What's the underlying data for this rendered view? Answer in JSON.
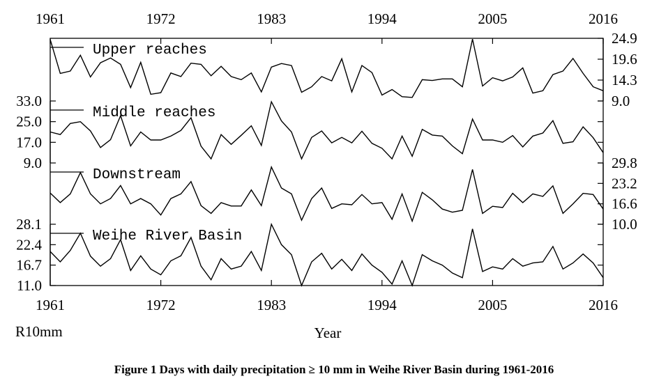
{
  "chart_data": {
    "type": "line",
    "title": "",
    "caption": "Figure 1  Days with daily precipitation ≥ 10 mm in Weihe River Basin during 1961-2016",
    "xlabel": "Year",
    "ylabel": "R10mm",
    "xlim": [
      1961,
      2016
    ],
    "x_ticks": [
      "1961",
      "1972",
      "1983",
      "1994",
      "2005",
      "2016"
    ],
    "x": [
      1961,
      1962,
      1963,
      1964,
      1965,
      1966,
      1967,
      1968,
      1969,
      1970,
      1971,
      1972,
      1973,
      1974,
      1975,
      1976,
      1977,
      1978,
      1979,
      1980,
      1981,
      1982,
      1983,
      1984,
      1985,
      1986,
      1987,
      1988,
      1989,
      1990,
      1991,
      1992,
      1993,
      1994,
      1995,
      1996,
      1997,
      1998,
      1999,
      2000,
      2001,
      2002,
      2003,
      2004,
      2005,
      2006,
      2007,
      2008,
      2009,
      2010,
      2011,
      2012,
      2013,
      2014,
      2015,
      2016
    ],
    "series": [
      {
        "name": "Upper reaches",
        "axis_side": "right",
        "ylim": [
          9.0,
          24.9
        ],
        "y_ticks": [
          "24.9",
          "19.6",
          "14.3",
          "9.0"
        ],
        "values": [
          24.6,
          16.0,
          16.6,
          20.6,
          15.1,
          18.7,
          19.9,
          18.3,
          12.4,
          18.8,
          10.7,
          11.1,
          16.1,
          15.2,
          18.6,
          18.3,
          15.4,
          17.8,
          15.2,
          14.4,
          16.1,
          11.3,
          17.6,
          18.5,
          18.0,
          11.2,
          12.6,
          15.2,
          14.1,
          19.7,
          11.3,
          18.0,
          16.2,
          10.5,
          11.9,
          10.1,
          9.9,
          14.4,
          14.2,
          14.6,
          14.6,
          12.6,
          24.7,
          12.8,
          14.9,
          14.1,
          15.1,
          17.4,
          11.0,
          11.6,
          15.7,
          16.6,
          19.8,
          16.0,
          12.6,
          11.6
        ]
      },
      {
        "name": "Middle reaches",
        "axis_side": "left",
        "ylim": [
          9.0,
          33.0
        ],
        "y_ticks": [
          "33.0",
          "25.0",
          "17.0",
          "9.0"
        ],
        "values": [
          21.0,
          20.0,
          24.3,
          25.0,
          21.4,
          15.0,
          18.0,
          27.3,
          15.6,
          21.0,
          17.9,
          17.9,
          19.4,
          21.6,
          26.5,
          15.5,
          10.6,
          20.0,
          16.2,
          19.7,
          23.4,
          15.8,
          32.7,
          25.3,
          21.0,
          10.6,
          18.9,
          21.4,
          16.8,
          18.9,
          16.8,
          21.3,
          16.6,
          14.7,
          10.6,
          19.4,
          11.6,
          22.0,
          19.8,
          19.4,
          15.6,
          12.6,
          26.0,
          17.9,
          17.9,
          17.0,
          19.6,
          15.2,
          19.4,
          20.6,
          25.4,
          16.6,
          17.2,
          23.0,
          18.8,
          13.0
        ]
      },
      {
        "name": "Downstream",
        "axis_side": "right",
        "ylim": [
          10.0,
          29.8
        ],
        "y_ticks": [
          "29.8",
          "23.2",
          "16.6",
          "10.0"
        ],
        "values": [
          20.1,
          17.0,
          19.8,
          26.7,
          19.8,
          16.6,
          18.3,
          22.5,
          16.6,
          18.3,
          16.6,
          13.0,
          18.3,
          19.8,
          23.8,
          16.0,
          13.5,
          17.0,
          15.9,
          15.9,
          21.1,
          16.0,
          28.5,
          21.7,
          19.8,
          11.3,
          18.3,
          21.7,
          15.1,
          16.6,
          16.3,
          19.6,
          16.6,
          17.0,
          11.6,
          19.8,
          11.0,
          20.3,
          17.9,
          14.9,
          13.9,
          14.5,
          27.7,
          13.5,
          15.8,
          15.4,
          20.0,
          17.0,
          19.8,
          19.0,
          22.4,
          13.5,
          16.6,
          20.0,
          19.6,
          14.9
        ]
      },
      {
        "name": "Weihe River Basin",
        "axis_side": "left",
        "ylim": [
          11.0,
          28.1
        ],
        "y_ticks": [
          "28.1",
          "22.4",
          "16.7",
          "11.0"
        ],
        "values": [
          20.5,
          17.6,
          20.8,
          25.6,
          19.2,
          16.4,
          18.5,
          23.8,
          15.2,
          19.3,
          15.6,
          14.0,
          17.9,
          19.3,
          24.4,
          16.4,
          12.6,
          18.5,
          15.6,
          16.4,
          20.5,
          15.2,
          28.1,
          22.4,
          19.6,
          11.0,
          17.6,
          20.0,
          15.6,
          18.3,
          15.2,
          19.8,
          16.7,
          14.7,
          11.4,
          17.9,
          11.0,
          19.6,
          17.9,
          16.7,
          14.5,
          13.2,
          26.8,
          14.9,
          16.2,
          15.6,
          18.5,
          16.4,
          17.3,
          17.6,
          21.9,
          15.6,
          17.3,
          19.8,
          17.3,
          13.2
        ]
      }
    ],
    "grid": false,
    "legend": "none; series names printed inside each panel at top-left"
  }
}
